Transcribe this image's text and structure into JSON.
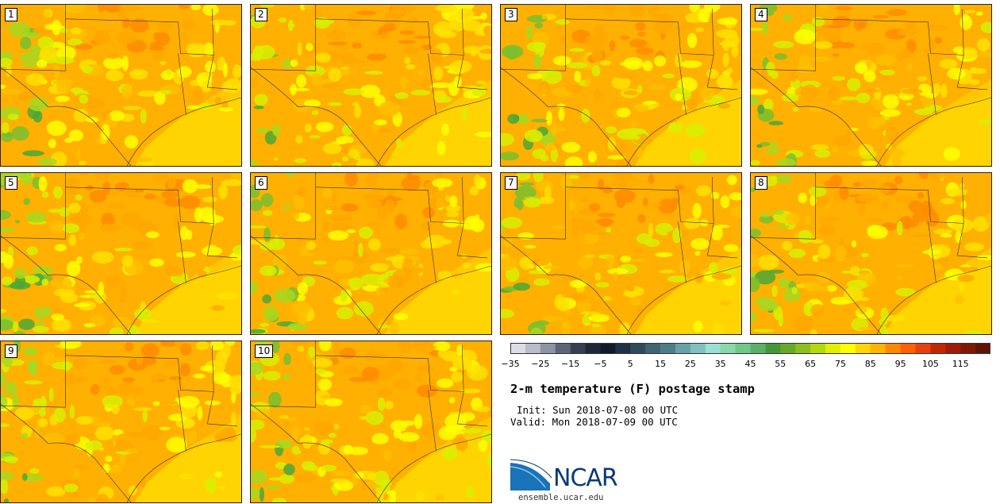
{
  "figure": {
    "title": "2-m temperature (F) postage stamp",
    "init": "Init: Sun 2018-07-08 00 UTC",
    "valid": "Valid: Mon 2018-07-09 00 UTC",
    "url": "ensemble.ucar.edu",
    "logo_text": "NCAR"
  },
  "panels": [
    {
      "label": "1"
    },
    {
      "label": "2"
    },
    {
      "label": "3"
    },
    {
      "label": "4"
    },
    {
      "label": "5"
    },
    {
      "label": "6"
    },
    {
      "label": "7"
    },
    {
      "label": "8"
    },
    {
      "label": "9"
    },
    {
      "label": "10"
    }
  ],
  "colorbar": {
    "tick_labels": [
      "−35",
      "−25",
      "−15",
      "−5",
      "5",
      "15",
      "25",
      "35",
      "45",
      "55",
      "65",
      "75",
      "85",
      "95",
      "105",
      "115"
    ],
    "colors": [
      "#dcdde6",
      "#b9bcc9",
      "#8e93a4",
      "#5f6579",
      "#383e53",
      "#1f2738",
      "#0f1a2c",
      "#1f3146",
      "#2e4a5c",
      "#3e6372",
      "#4f7c88",
      "#66a0a8",
      "#80c0c0",
      "#98e0d4",
      "#88d8a8",
      "#70c888",
      "#5bb068",
      "#449838",
      "#6aa82c",
      "#8cc01c",
      "#b4d80c",
      "#e0f000",
      "#ffff00",
      "#ffd400",
      "#ffb400",
      "#ff8800",
      "#ff6000",
      "#e84010",
      "#c02800",
      "#a01c08",
      "#801808",
      "#601404"
    ]
  }
}
